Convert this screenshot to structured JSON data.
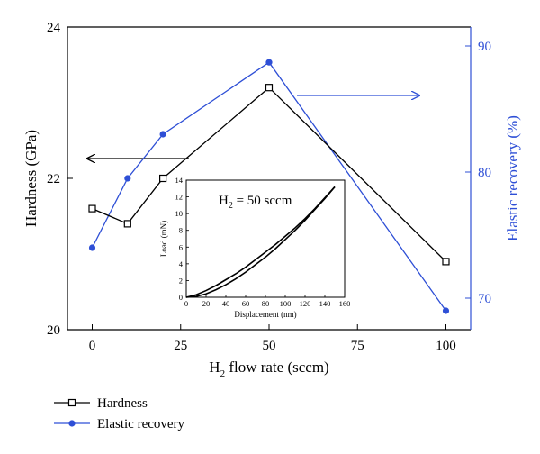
{
  "colors": {
    "hardness": "#000000",
    "elastic": "#2e4fd6",
    "right_axis": "#2e4fd6"
  },
  "chart_data": [
    {
      "type": "line",
      "x": [
        0,
        10,
        20,
        50,
        100
      ],
      "xlabel_main": "H",
      "xlabel_sub": "2",
      "xlabel_rest": " flow rate (sccm)",
      "xlim": [
        -7,
        107
      ],
      "xticks": [
        0,
        25,
        50,
        75,
        100
      ],
      "xtick_labels": [
        "0",
        "25",
        "50",
        "75",
        "100"
      ],
      "ylabel_left": "Hardness (GPa)",
      "ylim_left": [
        20,
        24
      ],
      "yticks_left": [
        20,
        22,
        24
      ],
      "ytick_labels_left": [
        "20",
        "22",
        "24"
      ],
      "ylabel_right": "Elastic recovery (%)",
      "ylim_right": [
        67.5,
        91.5
      ],
      "yticks_right": [
        70,
        80,
        90
      ],
      "ytick_labels_right": [
        "70",
        "80",
        "90"
      ],
      "series": [
        {
          "name": "Hardness",
          "axis": "left",
          "marker": "open-square",
          "values": [
            21.6,
            21.4,
            22.0,
            23.2,
            20.9
          ]
        },
        {
          "name": "Elastic recovery",
          "axis": "right",
          "marker": "filled-circle",
          "values": [
            74.0,
            79.5,
            83.0,
            88.7,
            69.0
          ]
        }
      ],
      "legend_position": "bottom-left",
      "annotations": {
        "left_arrow": "points to Hardness axis",
        "right_arrow": "points to Elastic recovery axis"
      }
    },
    {
      "type": "line",
      "role": "inset",
      "label_main": "H",
      "label_sub": "2",
      "label_rest": " = 50 sccm",
      "xlabel": "Displacement (nm)",
      "ylabel": "Load (mN)",
      "xlim": [
        0,
        160
      ],
      "ylim": [
        0,
        14
      ],
      "xticks": [
        0,
        20,
        40,
        60,
        80,
        100,
        120,
        140,
        160
      ],
      "xtick_labels": [
        "0",
        "20",
        "40",
        "60",
        "80",
        "100",
        "120",
        "140",
        "160"
      ],
      "yticks": [
        0,
        2,
        4,
        6,
        8,
        10,
        12,
        14
      ],
      "ytick_labels": [
        "0",
        "2",
        "4",
        "6",
        "8",
        "10",
        "12",
        "14"
      ],
      "series": [
        {
          "name": "",
          "x": [
            0,
            10,
            20,
            30,
            40,
            50,
            60,
            70,
            80,
            90,
            100,
            110,
            120,
            130,
            140,
            150
          ],
          "values": [
            0,
            0.1,
            0.4,
            0.9,
            1.5,
            2.2,
            3.0,
            3.9,
            4.8,
            5.8,
            6.9,
            8.0,
            9.2,
            10.5,
            11.8,
            13.2
          ]
        },
        {
          "name": "",
          "x": [
            0,
            10,
            20,
            30,
            40,
            50,
            60,
            70,
            80,
            90,
            100,
            110,
            120,
            130,
            140,
            150
          ],
          "values": [
            0,
            0.3,
            0.8,
            1.4,
            2.1,
            2.8,
            3.6,
            4.5,
            5.4,
            6.3,
            7.3,
            8.3,
            9.4,
            10.6,
            11.9,
            13.2
          ]
        }
      ]
    }
  ]
}
